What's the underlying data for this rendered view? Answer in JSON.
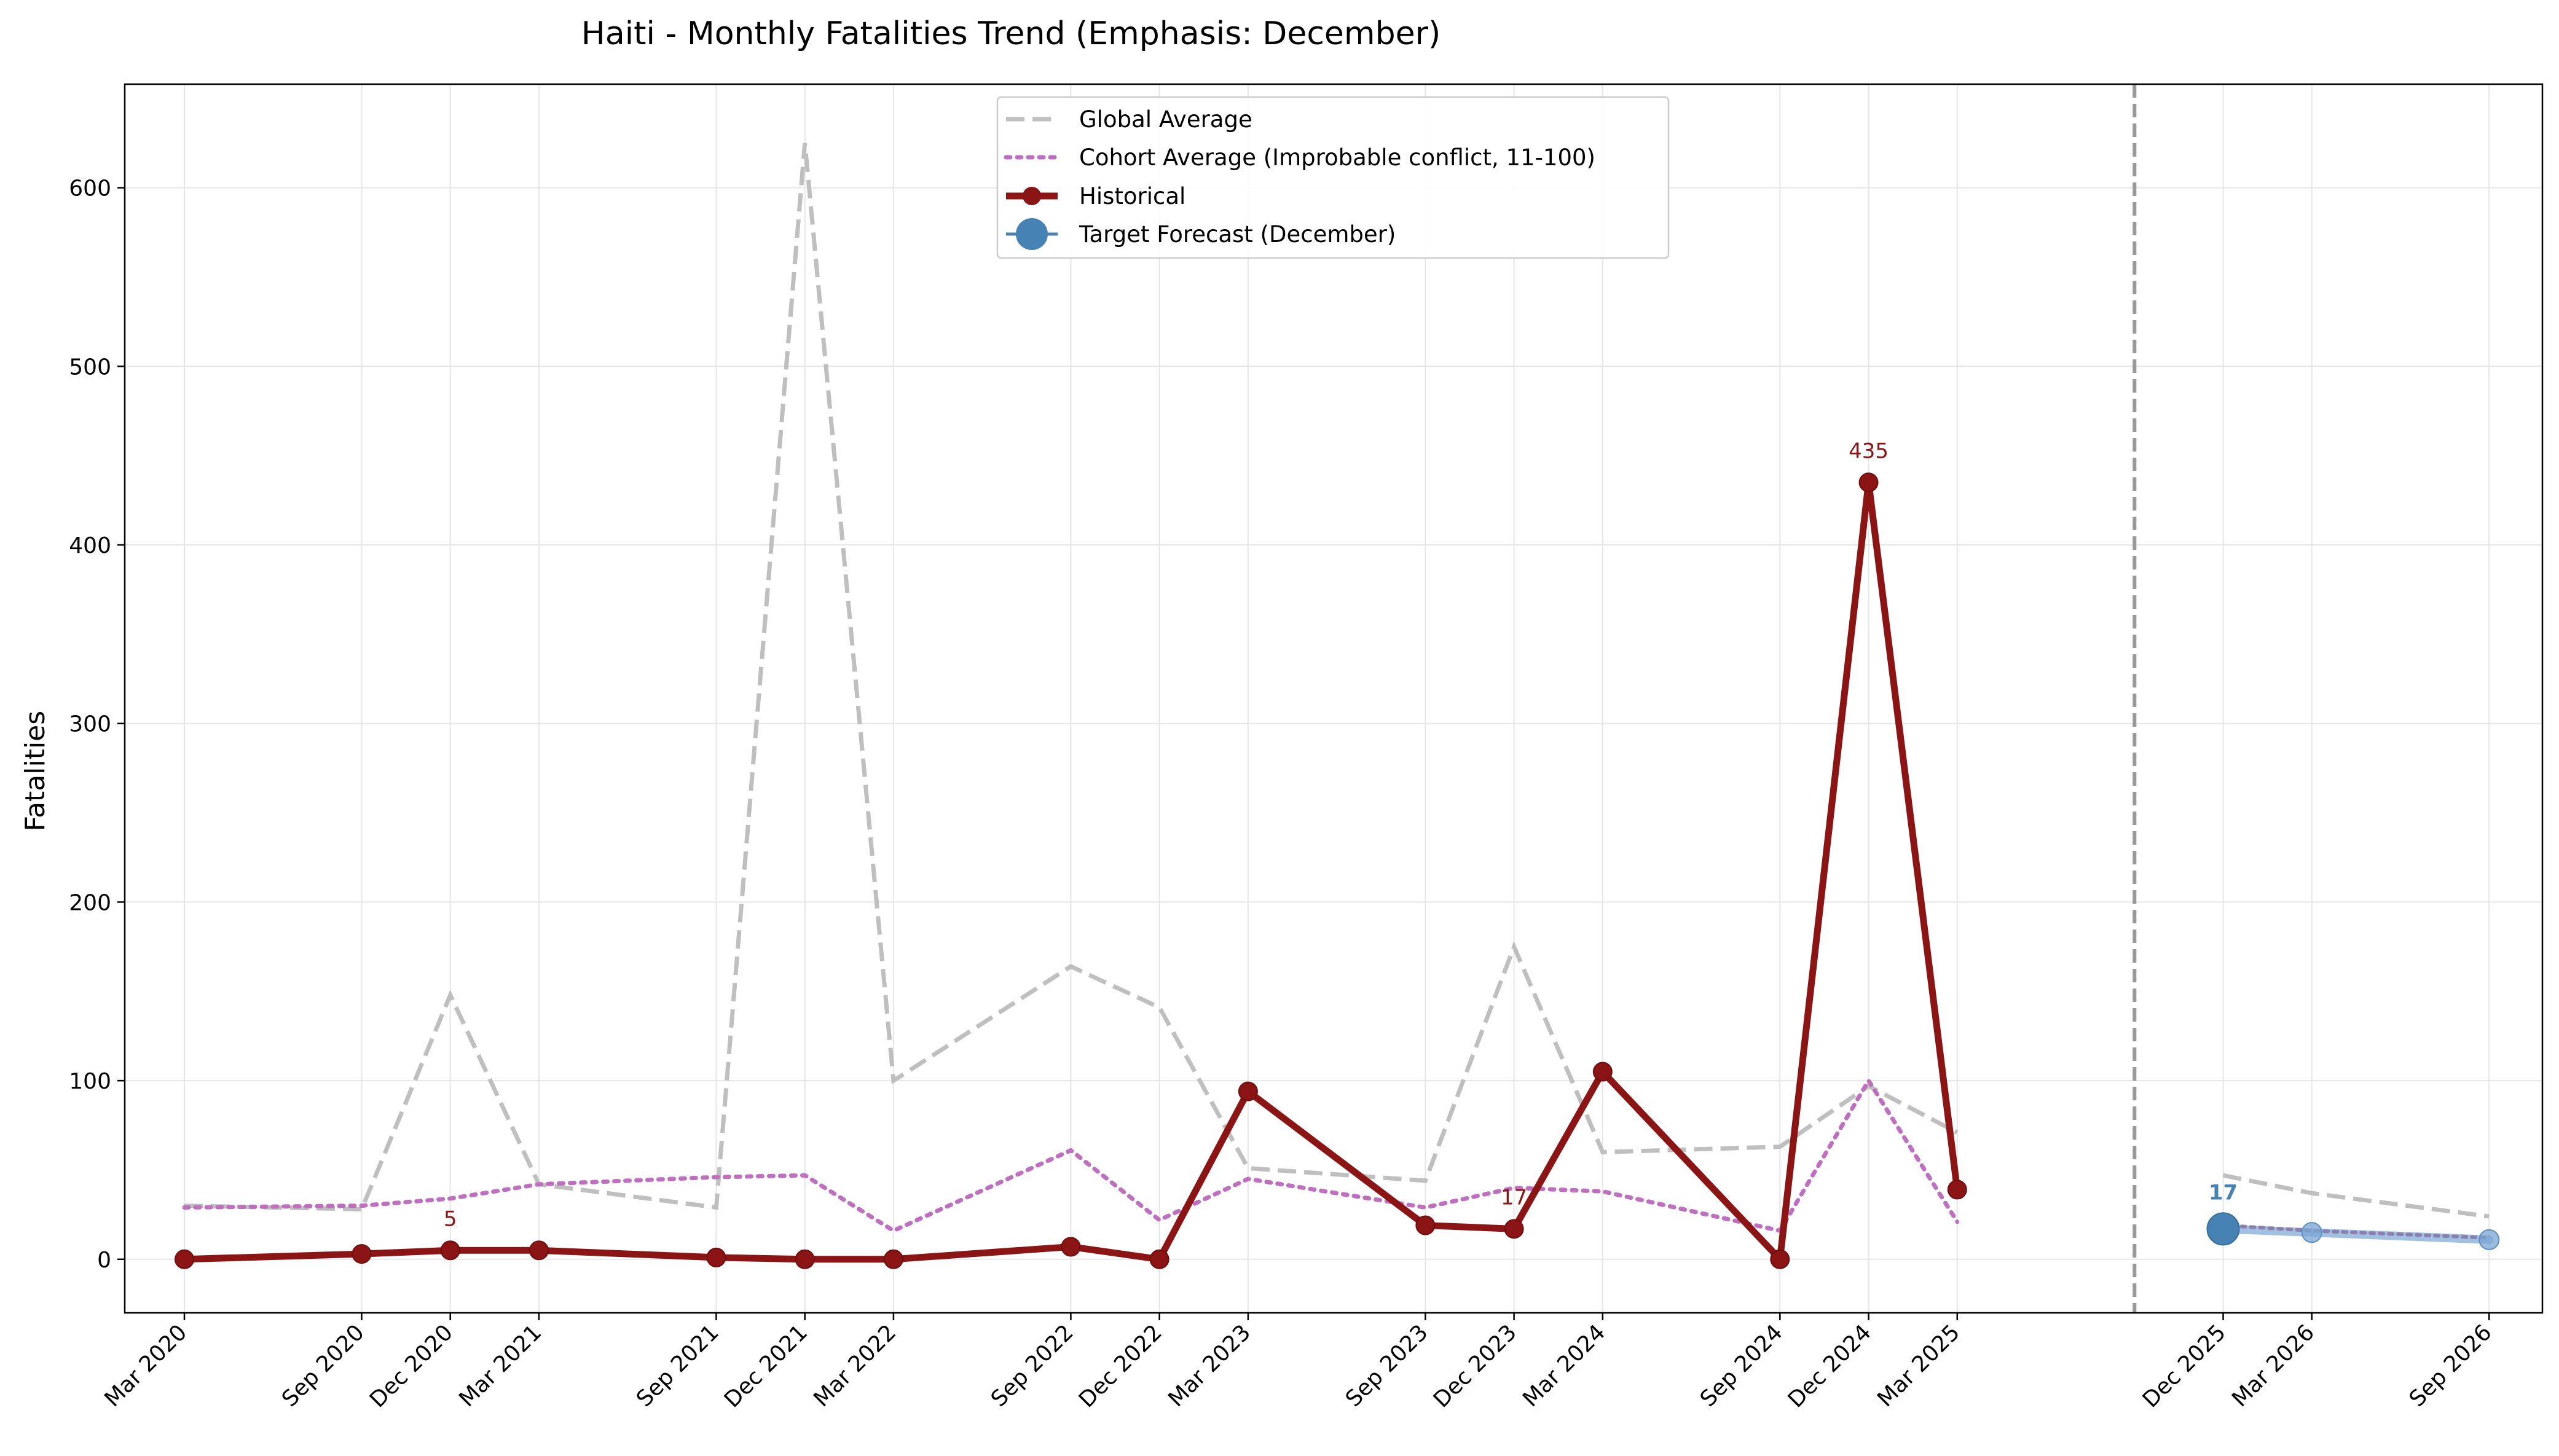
{
  "chart_data": {
    "type": "line",
    "title": "Haiti - Monthly Fatalities Trend (Emphasis: December)",
    "xlabel": "",
    "ylabel": "Fatalities",
    "ylim": [
      -30,
      658
    ],
    "yticks": [
      0,
      100,
      200,
      300,
      400,
      500,
      600
    ],
    "grid": true,
    "legend_position": "top-center",
    "x_ticks": [
      "2020-03",
      "2020-09",
      "2020-12",
      "2021-03",
      "2021-09",
      "2021-12",
      "2022-03",
      "2022-09",
      "2022-12",
      "2023-03",
      "2023-09",
      "2023-12",
      "2024-03",
      "2024-09",
      "2024-12",
      "2025-03",
      "2025-12",
      "2026-03",
      "2026-09"
    ],
    "x_tick_labels": [
      "Mar 2020",
      "Sep 2020",
      "Dec 2020",
      "Mar 2021",
      "Sep 2021",
      "Dec 2021",
      "Mar 2022",
      "Sep 2022",
      "Dec 2022",
      "Mar 2023",
      "Sep 2023",
      "Dec 2023",
      "Mar 2024",
      "Sep 2024",
      "Dec 2024",
      "Mar 2025",
      "Dec 2025",
      "Mar 2026",
      "Sep 2026"
    ],
    "forecast_divider_x": "2025-09",
    "series": [
      {
        "name": "Global Average",
        "style": "dashed",
        "color": "#bfbfbf",
        "x": [
          "2020-03",
          "2020-09",
          "2020-12",
          "2021-03",
          "2021-09",
          "2021-12",
          "2022-03",
          "2022-09",
          "2022-12",
          "2023-03",
          "2023-09",
          "2023-12",
          "2024-03",
          "2024-09",
          "2024-12",
          "2025-03"
        ],
        "values": [
          30,
          28,
          148,
          42,
          29,
          625,
          100,
          164,
          141,
          51,
          44,
          175,
          60,
          63,
          97,
          71
        ]
      },
      {
        "name": "Cohort Average (Improbable conflict, 11-100)",
        "style": "dotted",
        "color": "#bf6fbf",
        "x": [
          "2020-03",
          "2020-09",
          "2020-12",
          "2021-03",
          "2021-09",
          "2021-12",
          "2022-03",
          "2022-09",
          "2022-12",
          "2023-03",
          "2023-09",
          "2023-12",
          "2024-03",
          "2024-09",
          "2024-12",
          "2025-03"
        ],
        "values": [
          29,
          30,
          34,
          42,
          46,
          47,
          16,
          61,
          22,
          45,
          29,
          40,
          38,
          16,
          100,
          21
        ]
      },
      {
        "name": "Historical",
        "style": "solid-markers",
        "color": "#8b1414",
        "x": [
          "2020-03",
          "2020-09",
          "2020-12",
          "2021-03",
          "2021-09",
          "2021-12",
          "2022-03",
          "2022-09",
          "2022-12",
          "2023-03",
          "2023-09",
          "2023-12",
          "2024-03",
          "2024-09",
          "2024-12",
          "2025-03"
        ],
        "values": [
          0,
          3,
          5,
          5,
          1,
          0,
          0,
          7,
          0,
          94,
          19,
          17,
          105,
          0,
          435,
          39
        ]
      },
      {
        "name": "Target Forecast (December)",
        "style": "forecast",
        "color": "#4682b4",
        "x": [
          "2025-12",
          "2026-03",
          "2026-09"
        ],
        "values": [
          17,
          15,
          11
        ]
      }
    ],
    "forecast_global_average": {
      "x": [
        "2025-12",
        "2026-03",
        "2026-09"
      ],
      "values": [
        47,
        37,
        24
      ]
    },
    "forecast_cohort_average": {
      "x": [
        "2025-12",
        "2026-03",
        "2026-09"
      ],
      "values": [
        19,
        16,
        12
      ]
    },
    "annotations": [
      {
        "x": "2020-12",
        "y": 5,
        "text": "5",
        "color": "#8b1414"
      },
      {
        "x": "2023-12",
        "y": 17,
        "text": "17",
        "color": "#8b1414"
      },
      {
        "x": "2024-12",
        "y": 435,
        "text": "435",
        "color": "#8b1414"
      },
      {
        "x": "2025-12",
        "y": 17,
        "text": "17",
        "color": "#4682b4",
        "bold": true
      }
    ]
  }
}
